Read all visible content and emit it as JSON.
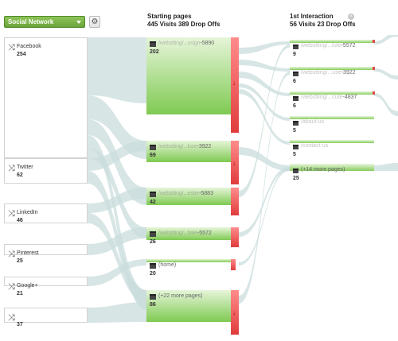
{
  "dimension_selector": {
    "label": "Social Network",
    "icon": "chevron-down-icon"
  },
  "settings": {
    "icon": "gear-icon",
    "glyph": "⚙"
  },
  "columns": {
    "starting": {
      "title": "Starting pages",
      "subtitle": "445 Visits 389 Drop Offs"
    },
    "first": {
      "title": "1st Interaction",
      "subtitle": "56 Visits 23 Drop Offs",
      "close_glyph": "×"
    }
  },
  "sources": [
    {
      "name": "Facebook",
      "count": "254",
      "icon": "arrow-split-icon"
    },
    {
      "name": "Twitter",
      "count": "62",
      "icon": "arrow-split-icon"
    },
    {
      "name": "LinkedIn",
      "count": "46",
      "icon": "arrow-split-icon"
    },
    {
      "name": "Pinterest",
      "count": "25",
      "icon": "arrow-split-icon"
    },
    {
      "name": "Google+",
      "count": "21",
      "icon": "arrow-split-icon"
    },
    {
      "name": "",
      "count": "37",
      "icon": "arrow-split-icon"
    }
  ],
  "starting_pages": [
    {
      "url_blur": "/webstting/...usign",
      "url_tail": "-5890",
      "visits": "202",
      "drop_offs": true
    },
    {
      "url_blur": "/webstting/...luse",
      "url_tail": "-3922",
      "visits": "69",
      "drop_offs": true
    },
    {
      "url_blur": "/webstting/...ester",
      "url_tail": "-5883",
      "visits": "42",
      "drop_offs": false
    },
    {
      "url_blur": "/webstting/...hale",
      "url_tail": "-5572",
      "visits": "26",
      "drop_offs": false
    },
    {
      "url_blur": "",
      "url_tail": "(home)",
      "visits": "20",
      "drop_offs": false
    },
    {
      "url_blur": "",
      "url_tail": "(+22 more pages)",
      "visits": "86",
      "drop_offs": true
    }
  ],
  "first_interaction": [
    {
      "url_blur": "/webstting/...lute",
      "url_tail": "-5572",
      "visits": "9"
    },
    {
      "url_blur": "/webstting/...use",
      "url_tail": "-3922",
      "visits": "6"
    },
    {
      "url_blur": "/webstting/...cute",
      "url_tail": "-4837",
      "visits": "6"
    },
    {
      "url_blur": "/about-us",
      "url_tail": "",
      "visits": "5"
    },
    {
      "url_blur": "/contact-us",
      "url_tail": "",
      "visits": "5"
    },
    {
      "url_blur": "",
      "url_tail": "(+14 more pages)",
      "visits": "25"
    }
  ],
  "colors": {
    "flow": "#c9dcdc",
    "bar_green": "#7fca52",
    "drop_red": "#e24a4a",
    "select_green": "#6aa53a"
  },
  "drop_glyph": "↓",
  "source_glyph": "⤨"
}
